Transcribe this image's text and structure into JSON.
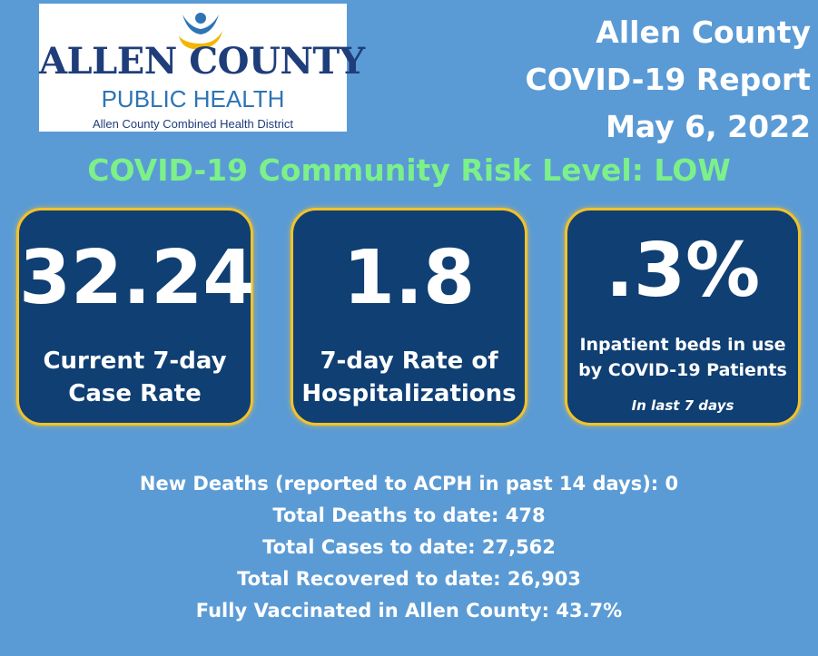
{
  "logo": {
    "title": "ALLEN COUNTY",
    "subtitle": "PUBLIC HEALTH",
    "tagline": "Allen County Combined Health District",
    "figure_icon": "person-figure-icon",
    "colors": {
      "navy": "#1f3d7a",
      "blue": "#2e74b5",
      "gold": "#f2b705"
    }
  },
  "header": {
    "line1": "Allen County",
    "line2": "COVID-19 Report",
    "date": "May 6, 2022"
  },
  "risk_level": "COVID-19 Community Risk Level: LOW",
  "cards": [
    {
      "value": "32.24",
      "label_line1": "Current 7-day",
      "label_line2": "Case Rate"
    },
    {
      "value": "1.8",
      "label_line1": "7-day Rate of",
      "label_line2": "Hospitalizations"
    },
    {
      "value": ".3%",
      "label_line1": "Inpatient beds in use",
      "label_line2": "by COVID-19 Patients",
      "note": "In last  7 days"
    }
  ],
  "stats": [
    "New Deaths (reported to ACPH in past 14 days): 0",
    "Total Deaths to date: 478",
    "Total Cases to date: 27,562",
    "Total Recovered to date: 26,903",
    "Fully Vaccinated in Allen County: 43.7%"
  ],
  "colors": {
    "background": "#5b9bd5",
    "card_fill": "#0f3f73",
    "card_border": "#f2c22a",
    "risk_text": "#7cf089",
    "text": "#ffffff"
  }
}
